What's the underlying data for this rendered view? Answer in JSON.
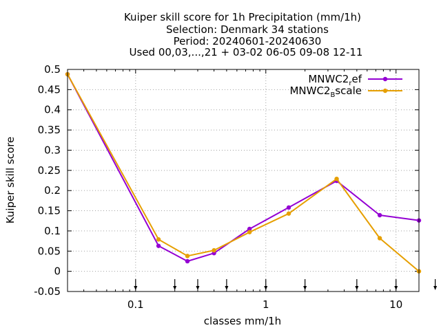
{
  "chart_data": {
    "type": "line",
    "title_lines": [
      "Kuiper skill score  for 1h Precipitation (mm/1h)",
      "Selection: Denmark     34 stations",
      "Period: 20240601-20240630",
      "Used 00,03,...,21 + 03-02 06-05 09-08 12-11"
    ],
    "xlabel": "classes mm/1h",
    "ylabel": "Kuiper skill score",
    "x_scale": "log",
    "xlim": [
      0.03,
      15
    ],
    "ylim": [
      -0.05,
      0.5
    ],
    "x_ticks": [
      0.1,
      1,
      10
    ],
    "x_tick_labels": [
      "0.1",
      "1",
      "10"
    ],
    "y_ticks": [
      -0.05,
      0,
      0.05,
      0.1,
      0.15,
      0.2,
      0.25,
      0.3,
      0.35,
      0.4,
      0.45,
      0.5
    ],
    "y_tick_labels": [
      "-0.05",
      "0",
      "0.05",
      "0.1",
      "0.15",
      "0.2",
      "0.25",
      "0.3",
      "0.35",
      "0.4",
      "0.45",
      "0.5"
    ],
    "grid": true,
    "legend_position": "top-right",
    "class_markers": [
      0.1,
      0.2,
      0.3,
      0.5,
      1,
      2,
      5,
      10,
      20
    ],
    "series": [
      {
        "name_main": "MNWC2",
        "name_sub": "r",
        "name_tail": "ef",
        "color": "#9400d3",
        "x": [
          0.03,
          0.15,
          0.25,
          0.4,
          0.75,
          1.5,
          3.5,
          7.5,
          15
        ],
        "values": [
          0.488,
          0.063,
          0.025,
          0.045,
          0.105,
          0.158,
          0.224,
          0.139,
          0.126
        ]
      },
      {
        "name_main": "MNWC2",
        "name_sub": "B",
        "name_tail": "scale",
        "color": "#e69f00",
        "x": [
          0.03,
          0.15,
          0.25,
          0.4,
          0.75,
          1.5,
          3.5,
          7.5,
          15
        ],
        "values": [
          0.488,
          0.079,
          0.038,
          0.052,
          0.097,
          0.143,
          0.229,
          0.082,
          0.0
        ]
      }
    ]
  }
}
